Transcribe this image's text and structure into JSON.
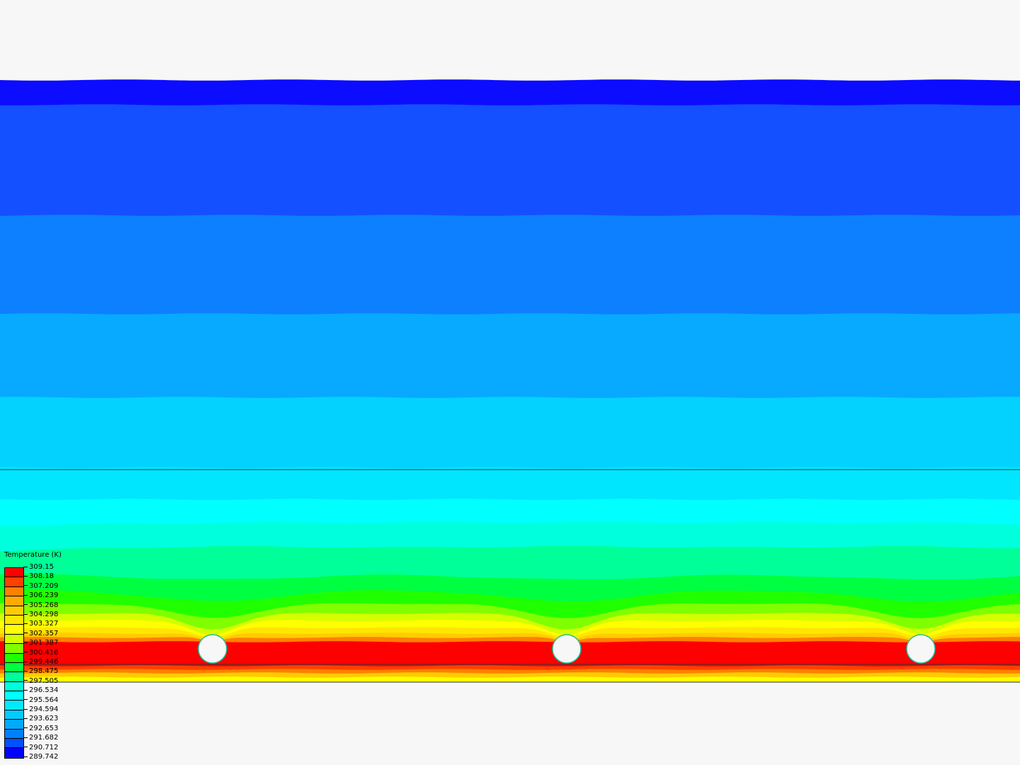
{
  "chart_data": {
    "type": "heatmap",
    "title": "",
    "legend": {
      "title": "Temperature (K)",
      "placement": "bottom-left",
      "levels": [
        "309.15",
        "308.18",
        "307.209",
        "306.239",
        "305.268",
        "304.298",
        "303.327",
        "302.357",
        "301.387",
        "300.416",
        "299.446",
        "298.475",
        "297.505",
        "296.534",
        "295.564",
        "294.594",
        "293.623",
        "292.653",
        "291.682",
        "290.712",
        "289.742"
      ],
      "colors": [
        "#ff0000",
        "#ff4000",
        "#ff8000",
        "#ffaa00",
        "#ffcc00",
        "#ffe600",
        "#ffff00",
        "#d4ff00",
        "#80ff00",
        "#20ff00",
        "#00ff40",
        "#00ff99",
        "#00ffdd",
        "#00ffff",
        "#00eaff",
        "#00ccff",
        "#00aaff",
        "#0080ff",
        "#0050ff",
        "#0000ff"
      ]
    },
    "range": [
      289.742,
      309.15
    ],
    "heat_sources": 3,
    "background": "#f7f7f7"
  }
}
